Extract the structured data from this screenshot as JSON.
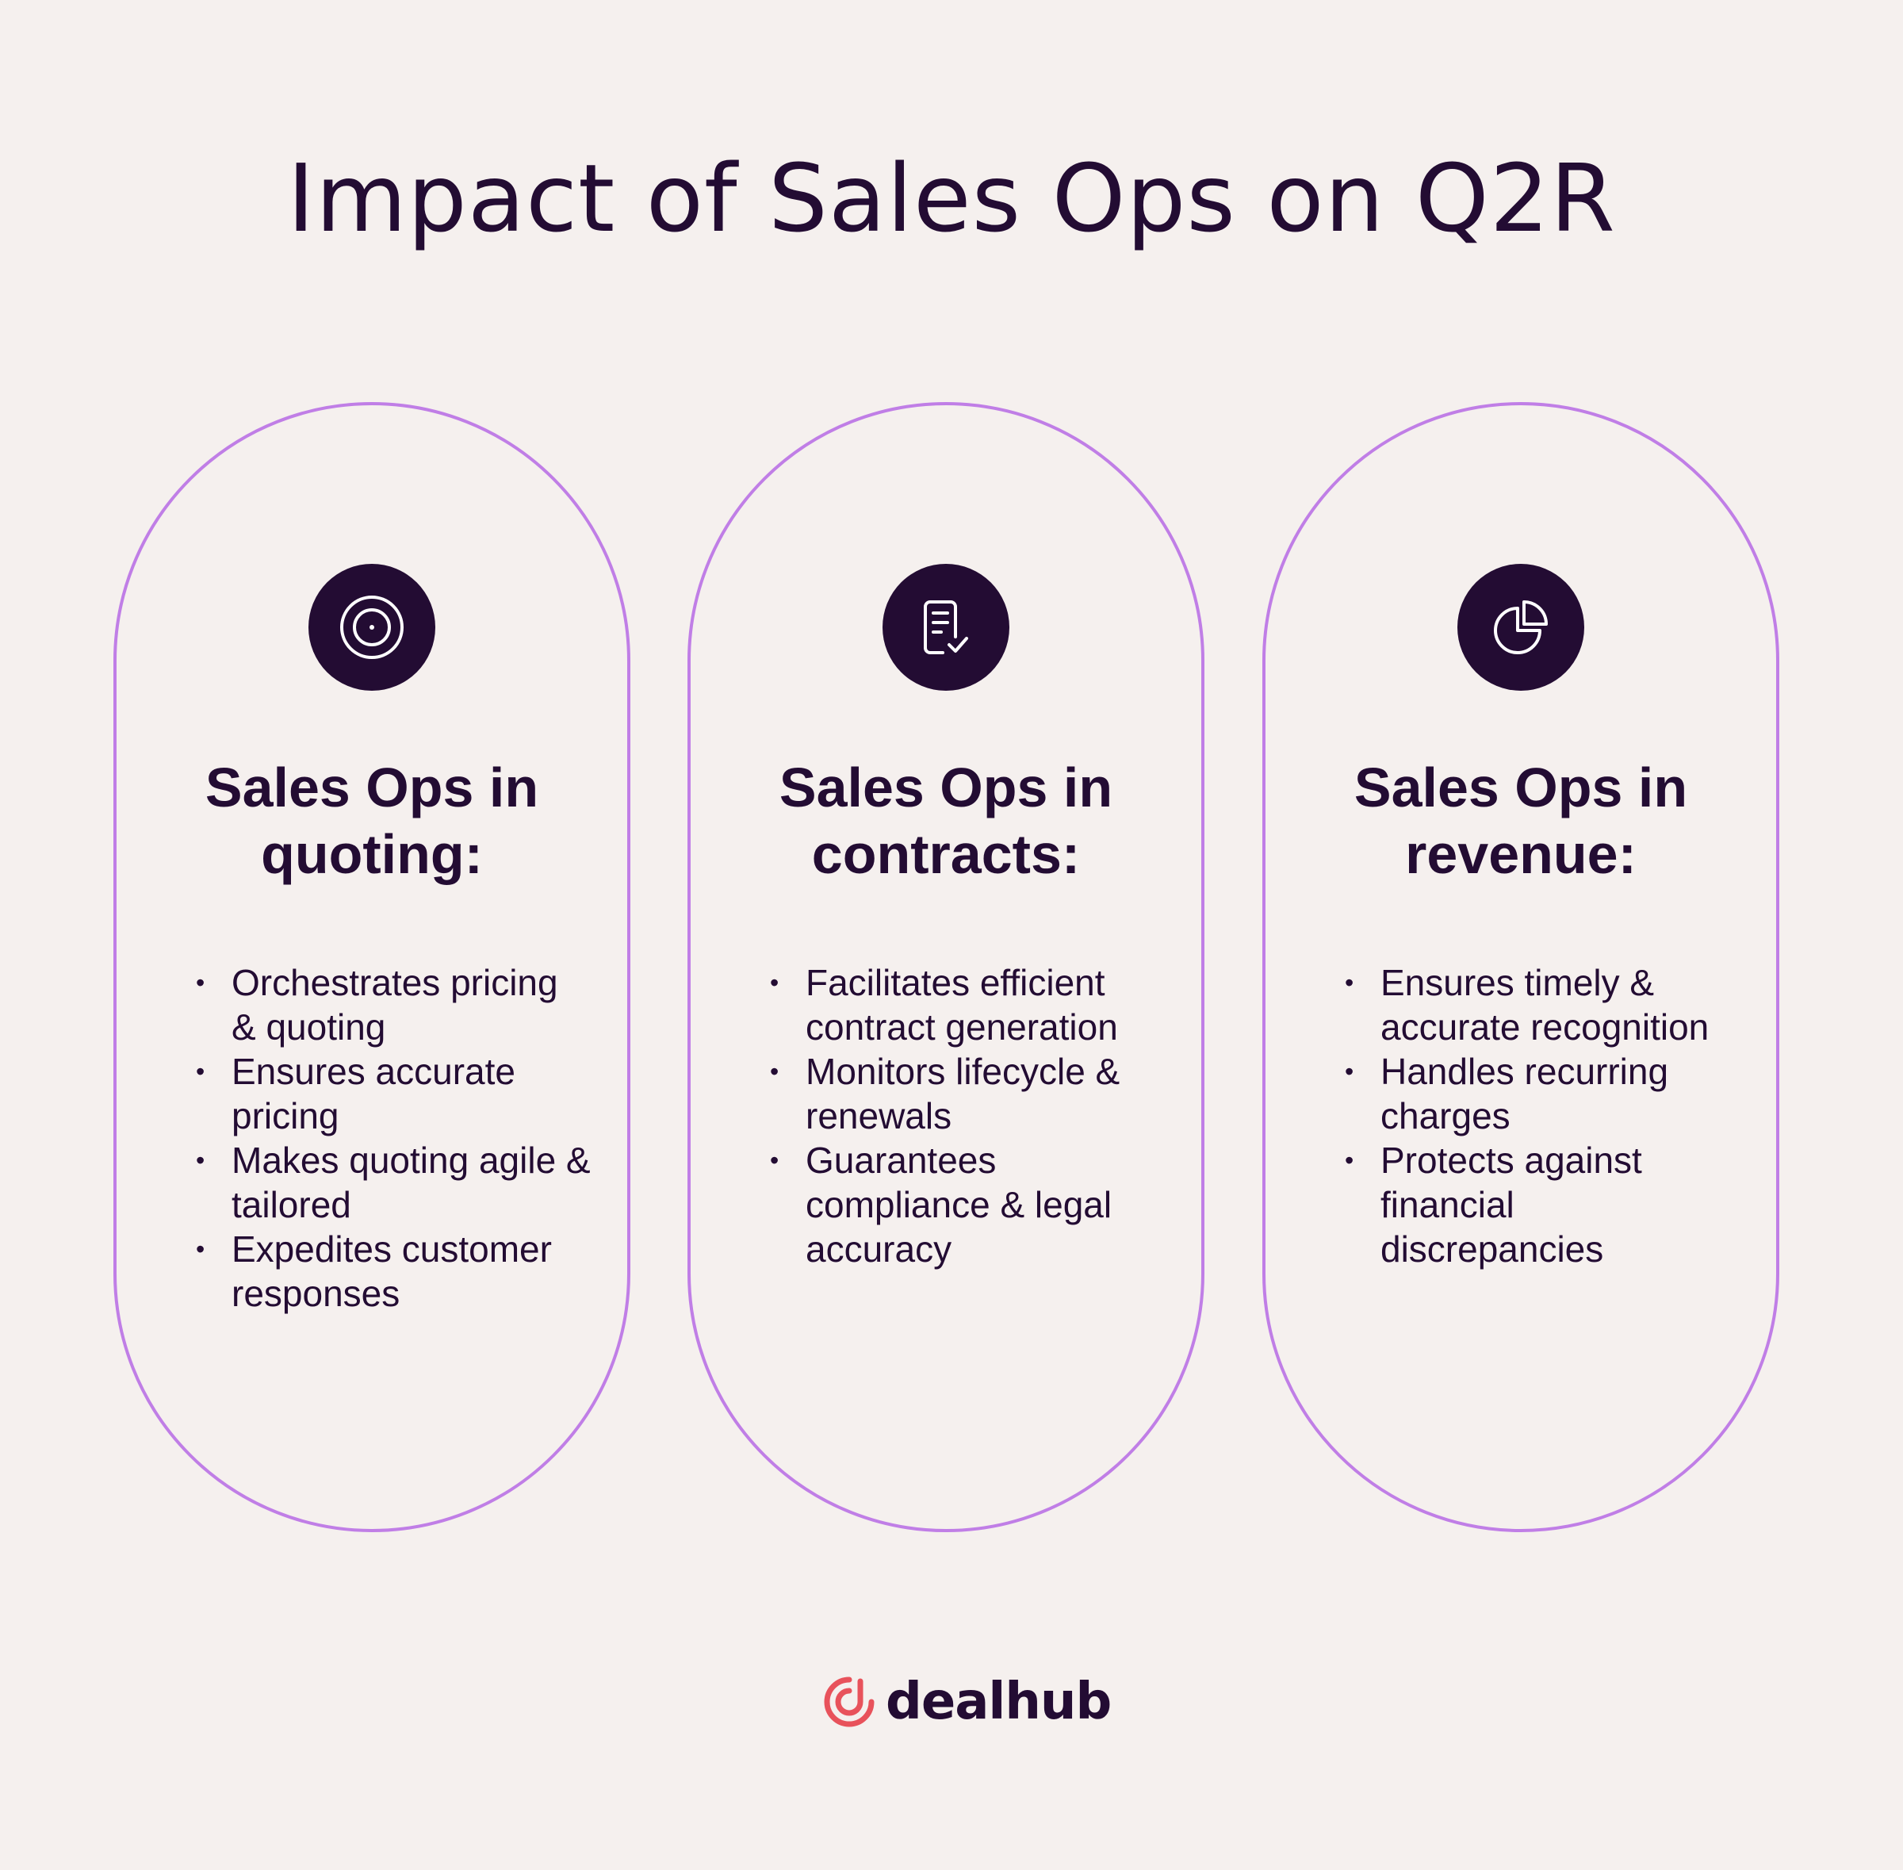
{
  "title": "Impact of Sales Ops on Q2R",
  "colors": {
    "background": "#f5f0ee",
    "dark": "#230c33",
    "pill_border": "#c07ee6",
    "logo_accent": "#e8525b"
  },
  "columns": [
    {
      "icon": "target-icon",
      "heading_line1": "Sales Ops in",
      "heading_line2": "quoting:",
      "bullets": [
        "Orchestrates pricing & quoting",
        "Ensures accurate pricing",
        "Makes quoting agile & tailored",
        "Expedites customer responses"
      ]
    },
    {
      "icon": "contract-check-icon",
      "heading_line1": "Sales Ops in",
      "heading_line2": "contracts:",
      "bullets": [
        "Facilitates efficient contract generation",
        "Monitors lifecycle & renewals",
        "Guarantees compliance & legal accuracy"
      ]
    },
    {
      "icon": "pie-chart-icon",
      "heading_line1": "Sales Ops in",
      "heading_line2": "revenue:",
      "bullets": [
        "Ensures timely & accurate recognition",
        "Handles recurring charges",
        "Protects against financial discrepancies"
      ]
    }
  ],
  "logo": {
    "text": "dealhub",
    "icon": "dealhub-logo-icon"
  }
}
